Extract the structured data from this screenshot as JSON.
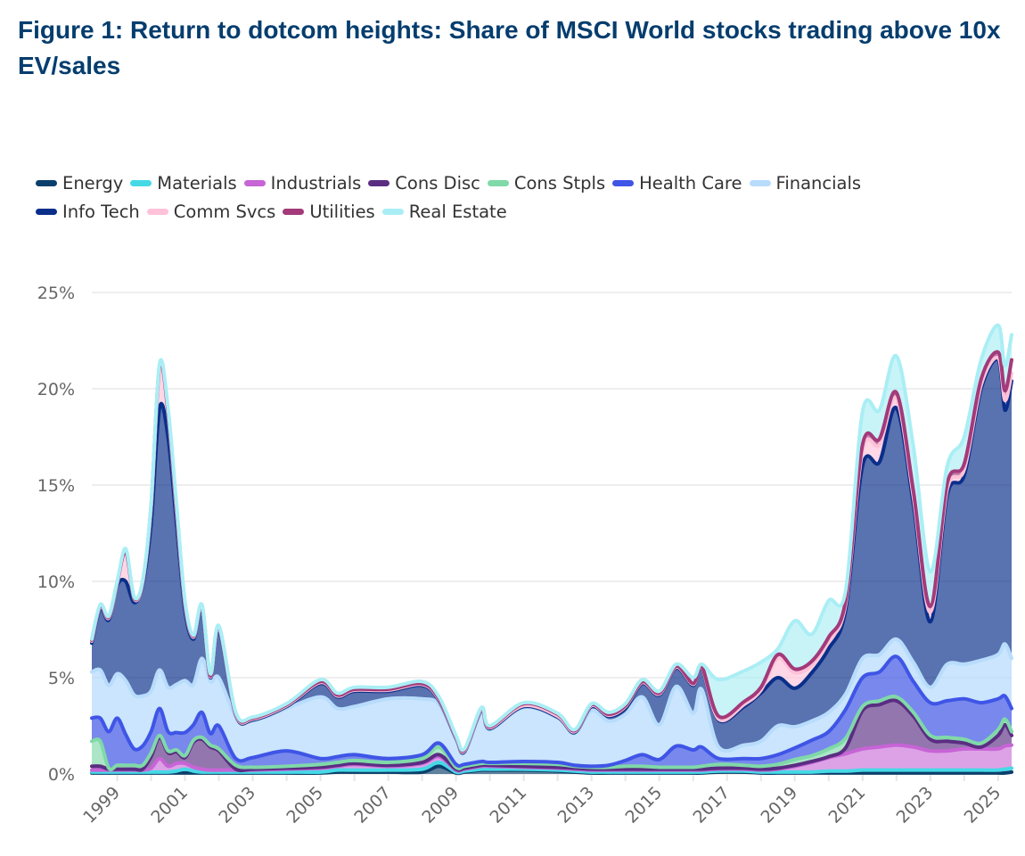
{
  "chart_data": {
    "type": "area",
    "stacked": true,
    "title": "Figure 1: Return to dotcom heights: Share of MSCI World stocks trading above 10x EV/sales",
    "xlabel": "",
    "ylabel": "",
    "ylim": [
      0,
      25
    ],
    "xlim": [
      1998.25,
      2025.4
    ],
    "yticks": [
      "0%",
      "5%",
      "10%",
      "15%",
      "20%",
      "25%"
    ],
    "ytick_values": [
      0,
      5,
      10,
      15,
      20,
      25
    ],
    "xticks": [
      "1999",
      "2001",
      "2003",
      "2005",
      "2007",
      "2009",
      "2011",
      "2013",
      "2015",
      "2017",
      "2019",
      "2021",
      "2023",
      "2025"
    ],
    "grid": true,
    "legend_position": "top-left",
    "x": [
      1998.25,
      1998.5,
      1998.75,
      1999,
      1999.25,
      1999.5,
      1999.75,
      2000,
      2000.25,
      2000.5,
      2000.75,
      2001,
      2001.25,
      2001.5,
      2001.75,
      2002,
      2002.5,
      2003,
      2004,
      2005,
      2005.5,
      2006,
      2007,
      2008,
      2008.5,
      2009,
      2009.25,
      2009.75,
      2010,
      2011,
      2012,
      2012.5,
      2013,
      2013.5,
      2014,
      2014.5,
      2015,
      2015.5,
      2016,
      2016.25,
      2016.75,
      2017.5,
      2018,
      2018.5,
      2019,
      2019.5,
      2020,
      2020.5,
      2021,
      2021.5,
      2022,
      2022.5,
      2023,
      2023.5,
      2024,
      2024.5,
      2025,
      2025.2,
      2025.4
    ],
    "series": [
      {
        "name": "Energy",
        "color": "#0b3f6b",
        "values": [
          0.05,
          0.05,
          0.05,
          0.05,
          0.05,
          0.05,
          0.05,
          0.05,
          0.05,
          0.05,
          0.05,
          0.05,
          0.05,
          0.05,
          0.05,
          0.05,
          0.05,
          0.05,
          0.05,
          0.05,
          0.1,
          0.1,
          0.1,
          0.1,
          0.4,
          0.05,
          0.1,
          0.2,
          0.2,
          0.2,
          0.15,
          0.1,
          0.05,
          0.05,
          0.05,
          0.05,
          0.05,
          0.05,
          0.05,
          0.05,
          0.1,
          0.1,
          0.05,
          0.05,
          0.05,
          0.05,
          0.05,
          0.05,
          0.05,
          0.05,
          0.05,
          0.05,
          0.05,
          0.05,
          0.05,
          0.05,
          0.05,
          0.05,
          0.1
        ]
      },
      {
        "name": "Materials",
        "color": "#45d9e6",
        "values": [
          0.05,
          0.05,
          0.05,
          0.05,
          0.05,
          0.05,
          0.05,
          0.05,
          0.05,
          0.05,
          0.1,
          0.2,
          0.1,
          0.05,
          0.05,
          0.05,
          0.05,
          0.05,
          0.05,
          0.05,
          0.1,
          0.1,
          0.1,
          0.15,
          0.2,
          0.05,
          0.05,
          0.05,
          0.05,
          0.05,
          0.05,
          0.05,
          0.05,
          0.05,
          0.05,
          0.05,
          0.05,
          0.05,
          0.05,
          0.05,
          0.05,
          0.05,
          0.05,
          0.05,
          0.05,
          0.05,
          0.1,
          0.1,
          0.15,
          0.15,
          0.15,
          0.15,
          0.15,
          0.15,
          0.15,
          0.15,
          0.15,
          0.2,
          0.2
        ]
      },
      {
        "name": "Industrials",
        "color": "#c764d6",
        "values": [
          0.1,
          0.1,
          0.1,
          0.1,
          0.1,
          0.1,
          0.1,
          0.2,
          0.7,
          0.3,
          0.4,
          0.3,
          0.2,
          0.15,
          0.1,
          0.1,
          0.1,
          0.1,
          0.15,
          0.2,
          0.2,
          0.3,
          0.2,
          0.3,
          0.3,
          0.1,
          0.1,
          0.15,
          0.15,
          0.1,
          0.1,
          0.1,
          0.1,
          0.1,
          0.1,
          0.1,
          0.1,
          0.1,
          0.1,
          0.1,
          0.1,
          0.1,
          0.1,
          0.15,
          0.3,
          0.5,
          0.7,
          0.9,
          1.1,
          1.2,
          1.3,
          1.2,
          1.0,
          1.0,
          1.1,
          1.1,
          1.1,
          1.2,
          1.2
        ]
      },
      {
        "name": "Cons Disc",
        "color": "#5a2d82",
        "values": [
          0.2,
          0.2,
          0.05,
          0.05,
          0.05,
          0.05,
          0.05,
          0.6,
          1.1,
          0.7,
          0.6,
          0.3,
          1.3,
          1.55,
          1.2,
          1.0,
          0.05,
          0.05,
          0.05,
          0.05,
          0.05,
          0.05,
          0.05,
          0.05,
          0.1,
          0.05,
          0.05,
          0.05,
          0.05,
          0.05,
          0.05,
          0.05,
          0.05,
          0.05,
          0.05,
          0.05,
          0.05,
          0.05,
          0.05,
          0.05,
          0.05,
          0.05,
          0.05,
          0.05,
          0.05,
          0.05,
          0.05,
          0.3,
          2.0,
          2.2,
          2.3,
          1.6,
          0.6,
          0.5,
          0.3,
          0.1,
          0.7,
          1.1,
          0.5
        ]
      },
      {
        "name": "Cons Stpls",
        "color": "#7fd9a8",
        "values": [
          1.3,
          1.3,
          0.05,
          0.2,
          0.2,
          0.2,
          0.2,
          0.2,
          0.1,
          0.1,
          0.1,
          0.1,
          0.1,
          0.1,
          0.1,
          0.1,
          0.2,
          0.1,
          0.1,
          0.15,
          0.15,
          0.15,
          0.15,
          0.2,
          0.4,
          0.1,
          0.1,
          0.1,
          0.1,
          0.15,
          0.15,
          0.1,
          0.1,
          0.1,
          0.15,
          0.15,
          0.1,
          0.1,
          0.1,
          0.15,
          0.2,
          0.15,
          0.15,
          0.2,
          0.3,
          0.3,
          0.4,
          0.5,
          0.2,
          0.2,
          0.2,
          0.2,
          0.2,
          0.2,
          0.2,
          0.2,
          0.3,
          0.3,
          0.2
        ]
      },
      {
        "name": "Health Care",
        "color": "#3f55e6",
        "values": [
          1.2,
          1.2,
          1.9,
          2.45,
          1.6,
          0.85,
          1.0,
          1.1,
          1.4,
          1.0,
          0.9,
          1.2,
          0.8,
          1.3,
          0.6,
          1.2,
          0.35,
          0.5,
          0.8,
          0.3,
          0.3,
          0.3,
          0.2,
          0.2,
          0.2,
          0.15,
          0.1,
          0.1,
          0.05,
          0.1,
          0.1,
          0.05,
          0.05,
          0.1,
          0.3,
          0.6,
          0.4,
          1.1,
          0.9,
          1.0,
          0.3,
          0.35,
          0.4,
          0.5,
          0.6,
          0.8,
          0.9,
          1.5,
          1.5,
          1.5,
          2.1,
          1.6,
          1.7,
          1.9,
          2.1,
          2.1,
          1.6,
          1.2,
          1.2
        ]
      },
      {
        "name": "Financials",
        "color": "#b8dcfc",
        "values": [
          2.4,
          2.5,
          2.4,
          2.3,
          2.8,
          2.8,
          2.6,
          2.1,
          2.0,
          2.3,
          2.5,
          2.7,
          2.1,
          2.8,
          2.7,
          2.5,
          2.2,
          1.9,
          2.2,
          3.2,
          2.5,
          2.5,
          3.1,
          2.9,
          2.0,
          1.3,
          0.6,
          2.6,
          1.7,
          2.8,
          2.3,
          1.65,
          2.9,
          2.3,
          2.4,
          3.0,
          1.8,
          3.1,
          1.9,
          3.0,
          0.6,
          0.7,
          0.9,
          1.5,
          1.1,
          1.0,
          1.0,
          0.8,
          1.0,
          0.9,
          0.9,
          1.0,
          0.8,
          1.9,
          1.8,
          2.2,
          2.3,
          2.7,
          2.6
        ]
      },
      {
        "name": "Info Tech",
        "color": "#0a2f8a",
        "values": [
          1.5,
          3.2,
          3.4,
          4.6,
          5.15,
          4.8,
          5.75,
          8.7,
          13.6,
          13.0,
          8.35,
          3.65,
          2.35,
          2.6,
          0.2,
          2.5,
          0.05,
          0.05,
          0.1,
          0.7,
          0.6,
          0.8,
          0.4,
          0.7,
          0.2,
          0.05,
          0.05,
          0.05,
          0.05,
          0.05,
          0.05,
          0.05,
          0.2,
          0.25,
          0.3,
          0.7,
          1.55,
          0.95,
          1.45,
          1.1,
          1.4,
          2.0,
          2.5,
          2.5,
          2.0,
          2.5,
          3.3,
          4.35,
          10.0,
          10.0,
          12.0,
          8.2,
          3.4,
          8.8,
          9.8,
          14.1,
          15.3,
          12.15,
          14.4
        ]
      },
      {
        "name": "Comm Svcs",
        "color": "#ffc2d8",
        "values": [
          0.1,
          0.1,
          0.1,
          0.1,
          1.5,
          0.2,
          0.1,
          0.8,
          2.1,
          1.2,
          0.6,
          0.3,
          0.1,
          0.1,
          0.05,
          0.1,
          0.05,
          0.05,
          0.05,
          0.05,
          0.05,
          0.05,
          0.05,
          0.05,
          0.05,
          0.05,
          0.05,
          0.05,
          0.05,
          0.05,
          0.05,
          0.05,
          0.05,
          0.05,
          0.1,
          0.05,
          0.05,
          0.05,
          0.05,
          0.05,
          0.05,
          0.1,
          0.15,
          1.0,
          0.8,
          0.4,
          0.4,
          0.3,
          0.8,
          0.9,
          0.5,
          0.4,
          0.5,
          0.3,
          0.3,
          0.2,
          0.1,
          0.5,
          0.4
        ]
      },
      {
        "name": "Utilities",
        "color": "#a33a7a",
        "values": [
          0.05,
          0.05,
          0.05,
          0.05,
          0.05,
          0.05,
          0.05,
          0.1,
          0.1,
          0.1,
          0.1,
          0.1,
          0.05,
          0.05,
          0.05,
          0.05,
          0.05,
          0.05,
          0.05,
          0.05,
          0.05,
          0.05,
          0.05,
          0.05,
          0.05,
          0.05,
          0.05,
          0.05,
          0.05,
          0.1,
          0.1,
          0.05,
          0.05,
          0.05,
          0.05,
          0.05,
          0.05,
          0.05,
          0.05,
          0.05,
          0.15,
          0.15,
          0.15,
          0.2,
          0.2,
          0.2,
          0.2,
          0.2,
          0.3,
          0.3,
          0.3,
          0.3,
          0.3,
          0.3,
          0.3,
          0.3,
          0.3,
          0.5,
          0.7
        ]
      },
      {
        "name": "Real Estate",
        "color": "#aaeef5",
        "values": [
          0.05,
          0.05,
          0.05,
          0.05,
          0.15,
          0.05,
          0.05,
          0.1,
          0.1,
          0.2,
          0.3,
          0.1,
          0.05,
          0.05,
          0.1,
          0.05,
          0.05,
          0.05,
          0.05,
          0.1,
          0.1,
          0.1,
          0.1,
          0.1,
          0.1,
          0.05,
          0.05,
          0.05,
          0.05,
          0.05,
          0.05,
          0.05,
          0.05,
          0.1,
          0.1,
          0.1,
          0.1,
          0.1,
          0.3,
          0.1,
          1.9,
          1.6,
          1.3,
          0.3,
          2.5,
          1.4,
          1.9,
          0.5,
          1.7,
          1.5,
          1.9,
          2.3,
          1.8,
          0.9,
          1.4,
          1.0,
          1.4,
          1.3,
          1.3
        ]
      }
    ]
  }
}
